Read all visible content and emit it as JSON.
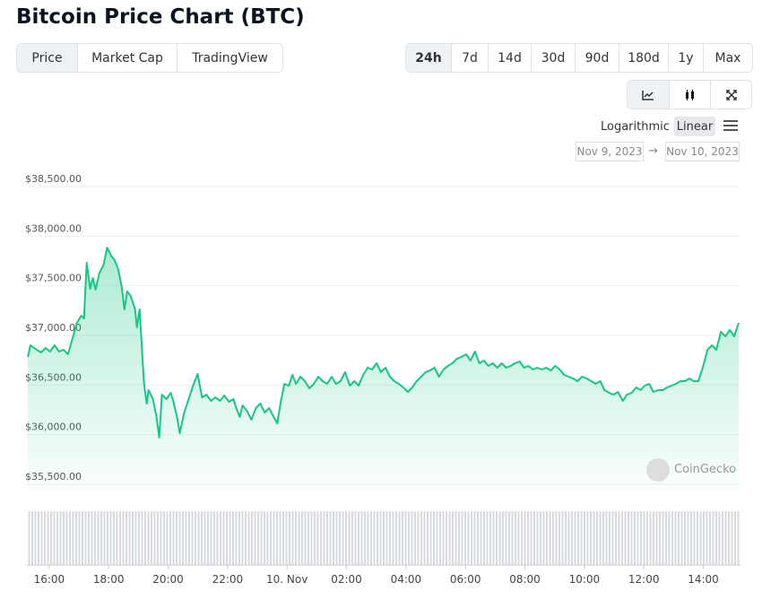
{
  "header": {
    "title": "Bitcoin Price Chart (BTC)"
  },
  "tabs": [
    "Price",
    "Market Cap",
    "TradingView"
  ],
  "ranges": [
    "24h",
    "7d",
    "14d",
    "30d",
    "90d",
    "180d",
    "1y",
    "Max"
  ],
  "scale": {
    "options": [
      "Logarithmic",
      "Linear"
    ]
  },
  "date_range": {
    "from": "Nov 9, 2023",
    "separator": "→",
    "to": "Nov 10, 2023"
  },
  "watermark": "CoinGecko",
  "chart_data": {
    "type": "line",
    "fill": true,
    "color": "#16c784",
    "grid": true,
    "x": [
      15.28,
      15.37,
      15.58,
      15.73,
      15.88,
      16.03,
      16.18,
      16.33,
      16.48,
      16.63,
      16.78,
      16.93,
      17.08,
      17.17,
      17.26,
      17.38,
      17.47,
      17.56,
      17.68,
      17.83,
      17.95,
      18.08,
      18.2,
      18.32,
      18.44,
      18.53,
      18.62,
      18.74,
      18.89,
      18.95,
      19.04,
      19.13,
      19.19,
      19.28,
      19.34,
      19.49,
      19.61,
      19.7,
      19.79,
      19.94,
      20.09,
      20.18,
      20.3,
      20.39,
      20.54,
      20.69,
      20.84,
      20.99,
      21.14,
      21.29,
      21.44,
      21.59,
      21.74,
      21.89,
      22.05,
      22.2,
      22.29,
      22.41,
      22.5,
      22.65,
      22.8,
      22.95,
      23.1,
      23.25,
      23.4,
      23.55,
      23.67,
      23.79,
      23.91,
      24.06,
      24.18,
      24.3,
      24.45,
      24.6,
      24.75,
      24.9,
      25.05,
      25.2,
      25.35,
      25.5,
      25.65,
      25.8,
      25.95,
      26.11,
      26.26,
      26.41,
      26.56,
      26.71,
      26.86,
      27.01,
      27.16,
      27.31,
      27.46,
      27.61,
      27.76,
      27.91,
      28.06,
      28.21,
      28.36,
      28.51,
      28.66,
      28.81,
      28.96,
      29.11,
      29.26,
      29.41,
      29.56,
      29.71,
      29.86,
      30.02,
      30.17,
      30.32,
      30.47,
      30.62,
      30.77,
      30.92,
      31.07,
      31.22,
      31.37,
      31.52,
      31.67,
      31.82,
      31.97,
      32.12,
      32.27,
      32.42,
      32.57,
      32.72,
      32.87,
      33.02,
      33.17,
      33.32,
      33.47,
      33.62,
      33.77,
      33.92,
      34.08,
      34.23,
      34.38,
      34.53,
      34.68,
      34.83,
      34.98,
      35.13,
      35.29,
      35.43,
      35.59,
      35.74,
      35.89,
      36.03,
      36.18,
      36.32,
      36.48,
      36.63,
      36.78,
      36.93,
      37.08,
      37.23,
      37.38,
      37.53,
      37.68,
      37.83,
      37.98,
      38.14,
      38.29,
      38.44,
      38.59,
      38.74,
      38.89,
      39.04,
      39.19
    ],
    "values": [
      36783,
      36901,
      36855,
      36828,
      36873,
      36837,
      36901,
      36837,
      36855,
      36810,
      36964,
      37126,
      37199,
      37172,
      37732,
      37470,
      37578,
      37461,
      37623,
      37714,
      37885,
      37804,
      37759,
      37669,
      37488,
      37262,
      37443,
      37398,
      37262,
      37081,
      37262,
      36810,
      36512,
      36313,
      36449,
      36358,
      36178,
      35970,
      36404,
      36358,
      36422,
      36331,
      36178,
      36015,
      36223,
      36358,
      36494,
      36611,
      36376,
      36404,
      36340,
      36376,
      36340,
      36395,
      36331,
      36358,
      36268,
      36178,
      36295,
      36241,
      36151,
      36268,
      36313,
      36223,
      36268,
      36178,
      36114,
      36331,
      36512,
      36494,
      36602,
      36512,
      36584,
      36539,
      36467,
      36512,
      36584,
      36539,
      36512,
      36584,
      36512,
      36539,
      36630,
      36494,
      36539,
      36494,
      36602,
      36675,
      36657,
      36720,
      36630,
      36675,
      36584,
      36539,
      36512,
      36476,
      36431,
      36476,
      36539,
      36584,
      36630,
      36648,
      36675,
      36584,
      36657,
      36693,
      36720,
      36765,
      36783,
      36810,
      36747,
      36837,
      36720,
      36747,
      36693,
      36720,
      36675,
      36720,
      36675,
      36693,
      36720,
      36738,
      36675,
      36693,
      36657,
      36675,
      36657,
      36675,
      36648,
      36693,
      36657,
      36602,
      36584,
      36566,
      36539,
      36584,
      36566,
      36539,
      36512,
      36539,
      36449,
      36422,
      36404,
      36431,
      36340,
      36404,
      36422,
      36476,
      36449,
      36494,
      36512,
      36431,
      36449,
      36449,
      36476,
      36494,
      36512,
      36539,
      36539,
      36566,
      36539,
      36539,
      36675,
      36855,
      36901,
      36855,
      37036,
      36991,
      37054,
      36991,
      37126
    ],
    "xlim": [
      15.25,
      39.25
    ],
    "xticks": [
      {
        "value": 16,
        "label": "16:00"
      },
      {
        "value": 18,
        "label": "18:00"
      },
      {
        "value": 20,
        "label": "20:00"
      },
      {
        "value": 22,
        "label": "22:00"
      },
      {
        "value": 24,
        "label": "10. Nov"
      },
      {
        "value": 26,
        "label": "02:00"
      },
      {
        "value": 28,
        "label": "04:00"
      },
      {
        "value": 30,
        "label": "06:00"
      },
      {
        "value": 32,
        "label": "08:00"
      },
      {
        "value": 34,
        "label": "10:00"
      },
      {
        "value": 36,
        "label": "12:00"
      },
      {
        "value": 38,
        "label": "14:00"
      }
    ],
    "ylim": [
      35500,
      38500
    ],
    "yticks": [
      {
        "value": 35500,
        "label": "$35,500.00"
      },
      {
        "value": 36000,
        "label": "$36,000.00"
      },
      {
        "value": 36500,
        "label": "$36,500.00"
      },
      {
        "value": 37000,
        "label": "$37,000.00"
      },
      {
        "value": 37500,
        "label": "$37,500.00"
      },
      {
        "value": 38000,
        "label": "$38,000.00"
      },
      {
        "value": 38500,
        "label": "$38,500.00"
      }
    ]
  }
}
